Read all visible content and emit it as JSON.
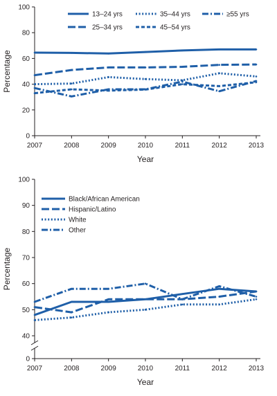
{
  "chart_data": [
    {
      "type": "line",
      "xlabel": "Year",
      "ylabel": "Percentage",
      "x": [
        2007,
        2008,
        2009,
        2010,
        2011,
        2012,
        2013
      ],
      "ylim": [
        0,
        100
      ],
      "yticks": [
        0,
        20,
        40,
        60,
        80,
        100
      ],
      "grid": false,
      "legend": "top",
      "color": "#1f5fa8",
      "series": [
        {
          "name": "13–24 yrs",
          "dash": "solid",
          "values": [
            64.5,
            64.3,
            63.8,
            65,
            66.2,
            67,
            67
          ]
        },
        {
          "name": "25–34 yrs",
          "dash": "dashed",
          "values": [
            47,
            51,
            53,
            53,
            53.5,
            55,
            55.3
          ]
        },
        {
          "name": "35–44 yrs",
          "dash": "dotted",
          "values": [
            40,
            40.5,
            45.5,
            44,
            43,
            48.5,
            46
          ]
        },
        {
          "name": "45–54 yrs",
          "dash": "dense-dash",
          "values": [
            33,
            36,
            35,
            35.8,
            40,
            38.5,
            41.5
          ]
        },
        {
          "name": "≥55 yrs",
          "dash": "dash-dot",
          "values": [
            37,
            30.5,
            36,
            36,
            42,
            34.5,
            42.5
          ]
        }
      ]
    },
    {
      "type": "line",
      "xlabel": "Year",
      "ylabel": "Percentage",
      "x": [
        2007,
        2008,
        2009,
        2010,
        2011,
        2012,
        2013
      ],
      "ylim": [
        40,
        100
      ],
      "yticks": [
        0,
        40,
        50,
        60,
        70,
        80,
        90,
        100
      ],
      "axis_break": true,
      "grid": false,
      "legend": "top-left",
      "color": "#1f5fa8",
      "series": [
        {
          "name": "Black/African American",
          "dash": "solid",
          "values": [
            48,
            53,
            53,
            54,
            56,
            58,
            57
          ]
        },
        {
          "name": "Hispanic/Latino",
          "dash": "dashed",
          "values": [
            51,
            49,
            54,
            54,
            54,
            55,
            57
          ]
        },
        {
          "name": "White",
          "dash": "dotted",
          "values": [
            46,
            47,
            49,
            50,
            52,
            52,
            54
          ]
        },
        {
          "name": "Other",
          "dash": "dash-dot",
          "values": [
            53,
            58,
            58,
            60,
            54,
            59,
            55
          ]
        }
      ]
    }
  ]
}
